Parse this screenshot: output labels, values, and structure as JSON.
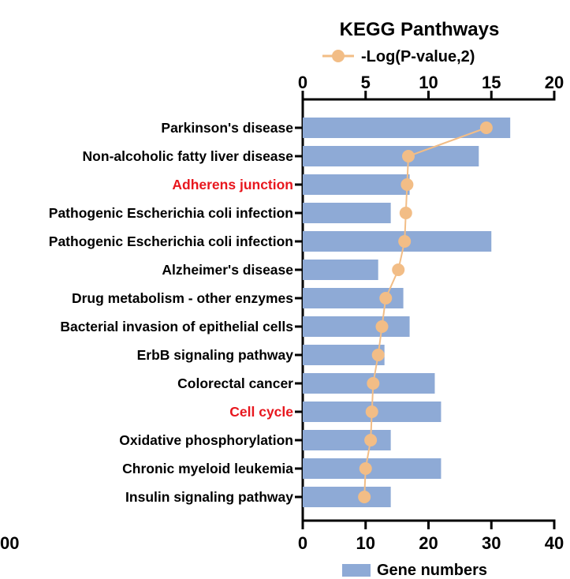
{
  "chart_data": {
    "type": "bar",
    "title": "KEGG Panthways",
    "categories": [
      "Parkinson's disease",
      "Non-alcoholic fatty liver disease",
      "Adherens junction",
      "Pathogenic Escherichia coli infection",
      "Pathogenic Escherichia coli infection",
      "Alzheimer's disease",
      "Drug metabolism - other enzymes",
      "Bacterial invasion of epithelial cells",
      "ErbB signaling pathway",
      "Colorectal cancer",
      "Cell cycle",
      "Oxidative phosphorylation",
      "Chronic myeloid leukemia",
      "Insulin signaling pathway"
    ],
    "highlighted_categories": [
      "Adherens junction",
      "Cell cycle"
    ],
    "highlight_color": "#e8171e",
    "series": [
      {
        "name": "Gene numbers",
        "kind": "bar",
        "axis": "bottom",
        "color": "#8eaad6",
        "values": [
          33,
          28,
          17,
          14,
          30,
          12,
          16,
          17,
          13,
          21,
          22,
          14,
          22,
          14
        ]
      },
      {
        "name": "-Log(P-value,2)",
        "kind": "line",
        "axis": "top",
        "color": "#f2bd86",
        "values": [
          14.6,
          8.4,
          8.3,
          8.2,
          8.1,
          7.6,
          6.6,
          6.3,
          6.0,
          5.6,
          5.5,
          5.4,
          5.0,
          4.9
        ]
      }
    ],
    "x_bottom": {
      "lim": [
        0,
        40
      ],
      "ticks": [
        "0",
        "10",
        "20",
        "30",
        "40"
      ]
    },
    "x_top": {
      "lim": [
        0,
        20
      ],
      "ticks": [
        "0",
        "5",
        "10",
        "15",
        "20"
      ]
    },
    "stray_left_label": "00",
    "legend_top_placement": "top-right",
    "legend_bottom_placement": "bottom"
  }
}
